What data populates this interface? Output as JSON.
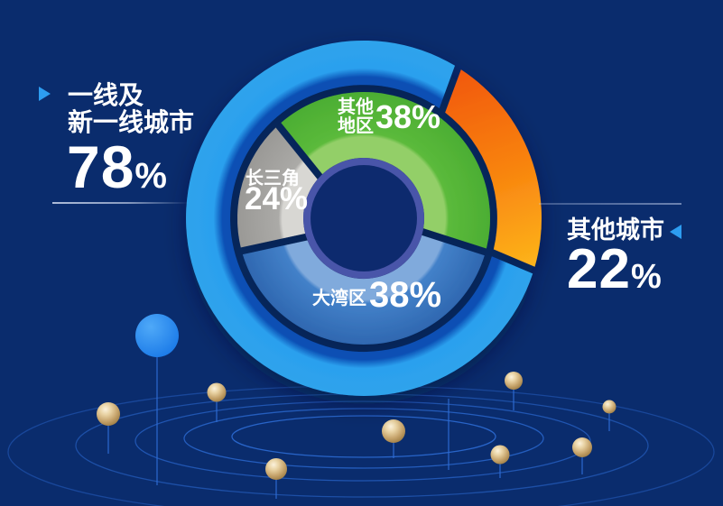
{
  "page": {
    "background": "#0A2C6D"
  },
  "colors": {
    "accent_triangle": "#2D9DF1",
    "text": "#FFFFFF",
    "divider_left": "#DBE4F6",
    "divider_right": "#C4D1EE",
    "orbit_line": "#2A67CE",
    "stem_line": "#2E6BD2",
    "node_blue": "#1E88F5",
    "sphere_gold": "#C9A86F",
    "center_ring": "#4A54A9",
    "center_hole": "#112C6E"
  },
  "left_stat": {
    "line1": "一线及",
    "line2": "新一线城市",
    "value": "78",
    "unit": "%"
  },
  "right_stat": {
    "label": "其他城市",
    "value": "22",
    "unit": "%"
  },
  "donut_labels": {
    "other_regions": {
      "line1": "其他",
      "line2": "地区",
      "value": "38%"
    },
    "yangtze_delta": {
      "label": "长三角",
      "value": "24%"
    },
    "greater_bay": {
      "label": "大湾区",
      "value": "38%"
    }
  },
  "chart_data": {
    "type": "pie",
    "variant": "nested-donut",
    "outer_ring": {
      "series": [
        {
          "label": "一线及新一线城市",
          "value": 78,
          "gradient": [
            "#0B4FB4",
            "#2BA0EE",
            "#2FA3EC"
          ]
        },
        {
          "label": "其他城市",
          "value": 22,
          "gradient": [
            "#F1570E",
            "#F8830F",
            "#FFC51F"
          ]
        }
      ]
    },
    "inner_ring": {
      "series": [
        {
          "label": "其他地区",
          "value": 38,
          "gradient": [
            "#93CF68",
            "#5BBA3B",
            "#4CAE33"
          ]
        },
        {
          "label": "大湾区",
          "value": 38,
          "gradient": [
            "#80AADC",
            "#4381C9",
            "#2F68B1"
          ]
        },
        {
          "label": "长三角",
          "value": 24,
          "gradient": [
            "#D8D7D3",
            "#ABAAA7",
            "#9A9996"
          ]
        }
      ]
    }
  }
}
